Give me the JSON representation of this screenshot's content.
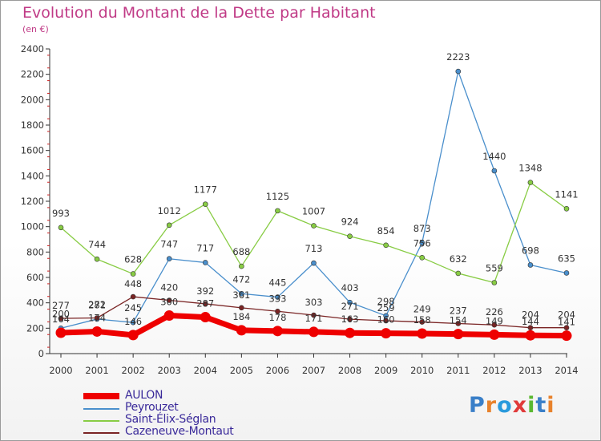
{
  "title": "Evolution du Montant de la Dette par Habitant",
  "unit": "(en €)",
  "logo": "Proxiti",
  "colors": {
    "title": "#c03a86",
    "axis": "#333333",
    "legend_text": "#3a2a9a",
    "logo_letters": [
      "#3a7fc8",
      "#e8822c",
      "#2a9adc",
      "#e03a3a",
      "#5ab830",
      "#3a7fc8",
      "#e8822c"
    ]
  },
  "chart_data": {
    "type": "line",
    "title": "Evolution du Montant de la Dette par Habitant",
    "ylabel": "(en €)",
    "xlabel": "",
    "ylim": [
      0,
      2400
    ],
    "yticks": [
      0,
      200,
      400,
      600,
      800,
      1000,
      1200,
      1400,
      1600,
      1800,
      2000,
      2200,
      2400
    ],
    "x": [
      "2000",
      "2001",
      "2002",
      "2003",
      "2004",
      "2005",
      "2006",
      "2007",
      "2008",
      "2009",
      "2010",
      "2011",
      "2012",
      "2013",
      "2014"
    ],
    "legend_position": "bottom-left",
    "series": [
      {
        "name": "AULON",
        "color": "#ee0000",
        "values": [
          164,
          174,
          146,
          300,
          287,
          184,
          178,
          171,
          163,
          160,
          158,
          154,
          149,
          144,
          141
        ],
        "labels": [
          "164",
          "174",
          "146",
          "300",
          "287",
          "184",
          "178",
          "171",
          "163",
          "160",
          "158",
          "154",
          "149",
          "144",
          "141"
        ]
      },
      {
        "name": "Peyrouzet",
        "color": "#4a8fcc",
        "values": [
          200,
          272,
          245,
          747,
          717,
          472,
          445,
          713,
          403,
          298,
          873,
          2223,
          1440,
          698,
          635
        ],
        "labels": [
          "200",
          "272",
          "245",
          "747",
          "717",
          "472",
          "445",
          "713",
          "403",
          "298",
          "873",
          "2223",
          "1440",
          "698",
          "635"
        ]
      },
      {
        "name": "Saint-Élix-Séglan",
        "color": "#88cc44",
        "values": [
          993,
          744,
          628,
          1012,
          1177,
          688,
          1125,
          1007,
          924,
          854,
          756,
          632,
          559,
          1348,
          1141
        ],
        "labels": [
          "993",
          "744",
          "628",
          "1012",
          "1177",
          "688",
          "1125",
          "1007",
          "924",
          "854",
          "756",
          "632",
          "559",
          "1348",
          "1141"
        ]
      },
      {
        "name": "Cazeneuve-Montaut",
        "color": "#7a2424",
        "values": [
          277,
          281,
          448,
          420,
          392,
          361,
          333,
          303,
          271,
          259,
          249,
          237,
          226,
          204,
          204
        ],
        "labels": [
          "277",
          "281",
          "448",
          "420",
          "392",
          "361",
          "333",
          "303",
          "271",
          "259",
          "249",
          "237",
          "226",
          "204",
          "204"
        ]
      }
    ]
  }
}
